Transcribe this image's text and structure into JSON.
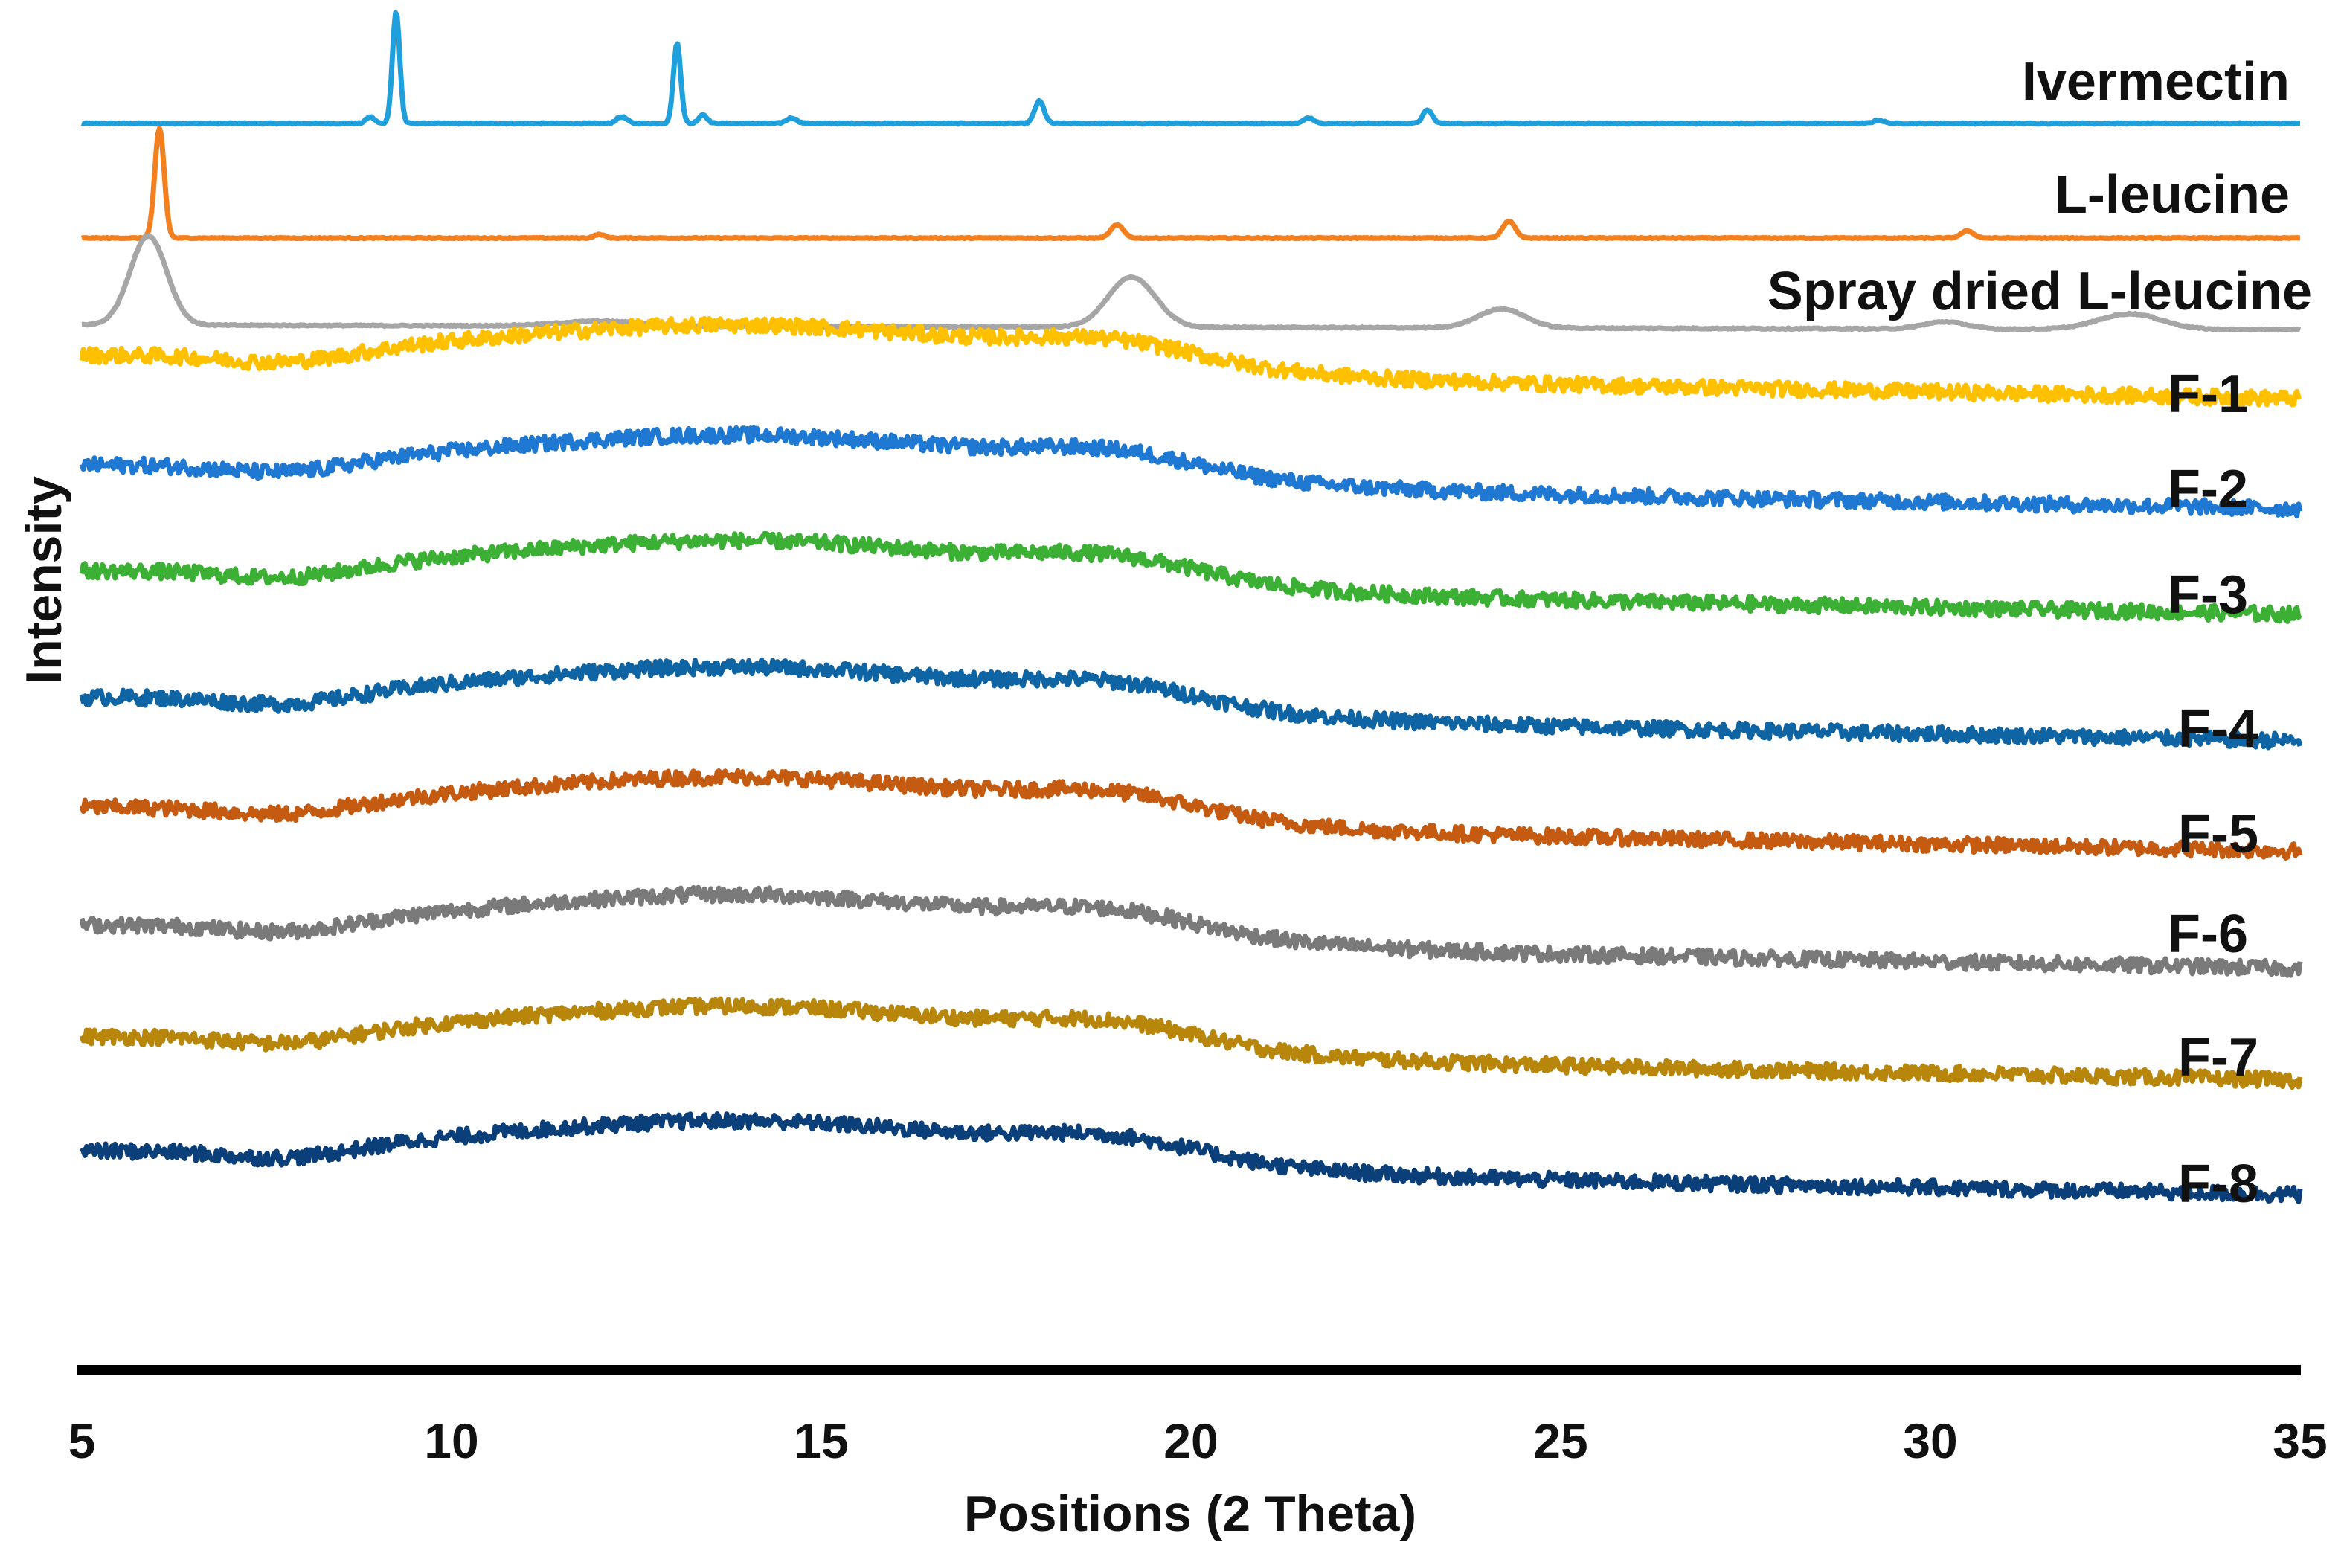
{
  "chart_data": {
    "type": "line",
    "title": "",
    "xlabel": "Positions (2 Theta)",
    "ylabel": "Intensity",
    "xlim": [
      5,
      35
    ],
    "xticks": [
      5,
      10,
      15,
      20,
      25,
      30,
      35
    ],
    "y_axis_shown": false,
    "legend": "labels at right end of each trace",
    "series": [
      {
        "name": "Ivermectin",
        "color": "#1f9fdb",
        "baseline_left": 0.0,
        "baseline_right": 0.0,
        "noise": 0.006,
        "hump": 0,
        "peaks": [
          [
            9.25,
            1.0,
            0.07
          ],
          [
            13.05,
            0.72,
            0.07
          ],
          [
            17.95,
            0.2,
            0.09
          ],
          [
            23.2,
            0.12,
            0.09
          ],
          [
            12.3,
            0.06,
            0.1
          ],
          [
            13.4,
            0.08,
            0.08
          ],
          [
            14.6,
            0.05,
            0.1
          ],
          [
            8.9,
            0.06,
            0.08
          ],
          [
            21.6,
            0.05,
            0.1
          ],
          [
            29.3,
            0.03,
            0.1
          ]
        ]
      },
      {
        "name": "L-leucine",
        "color": "#f47f1f",
        "baseline_left": 0.0,
        "baseline_right": 0.0,
        "noise": 0.004,
        "hump": 0,
        "peaks": [
          [
            6.05,
            0.92,
            0.09
          ],
          [
            19.0,
            0.11,
            0.12
          ],
          [
            24.3,
            0.14,
            0.12
          ],
          [
            30.5,
            0.06,
            0.12
          ],
          [
            12.0,
            0.03,
            0.1
          ]
        ]
      },
      {
        "name": "Spray dried L-leucine",
        "color": "#a6a6a6",
        "baseline_left": 0.02,
        "baseline_right": -0.02,
        "noise": 0.005,
        "hump": 0,
        "peaks": [
          [
            5.9,
            0.75,
            0.35
          ],
          [
            19.2,
            0.42,
            0.45
          ],
          [
            24.2,
            0.16,
            0.45
          ],
          [
            32.7,
            0.13,
            0.6
          ],
          [
            30.2,
            0.06,
            0.4
          ],
          [
            12.0,
            0.04,
            0.8
          ]
        ]
      },
      {
        "name": "F-1",
        "color": "#ffc000",
        "baseline_left": 0.2,
        "baseline_right": -0.08,
        "noise": 0.05,
        "hump": 0.3,
        "peaks": []
      },
      {
        "name": "F-2",
        "color": "#1f78d1",
        "baseline_left": 0.2,
        "baseline_right": -0.08,
        "noise": 0.05,
        "hump": 0.3,
        "peaks": []
      },
      {
        "name": "F-3",
        "color": "#3cb034",
        "baseline_left": 0.2,
        "baseline_right": -0.08,
        "noise": 0.05,
        "hump": 0.3,
        "peaks": []
      },
      {
        "name": "F-4",
        "color": "#0f64a4",
        "baseline_left": 0.2,
        "baseline_right": -0.08,
        "noise": 0.05,
        "hump": 0.3,
        "peaks": []
      },
      {
        "name": "F-5",
        "color": "#c55a11",
        "baseline_left": 0.2,
        "baseline_right": -0.08,
        "noise": 0.05,
        "hump": 0.3,
        "peaks": []
      },
      {
        "name": "F-6",
        "color": "#7a7a7a",
        "baseline_left": 0.2,
        "baseline_right": -0.08,
        "noise": 0.05,
        "hump": 0.3,
        "peaks": []
      },
      {
        "name": "F-7",
        "color": "#b8860b",
        "baseline_left": 0.2,
        "baseline_right": -0.08,
        "noise": 0.05,
        "hump": 0.3,
        "peaks": []
      },
      {
        "name": "F-8",
        "color": "#0b3f7a",
        "baseline_left": 0.2,
        "baseline_right": -0.08,
        "noise": 0.05,
        "hump": 0.3,
        "peaks": []
      }
    ]
  }
}
